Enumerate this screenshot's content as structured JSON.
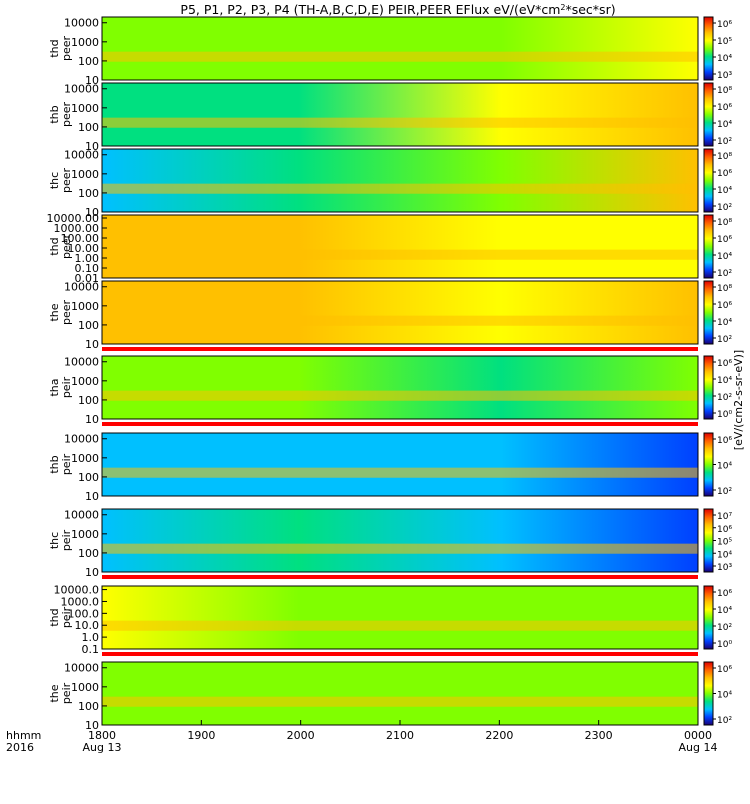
{
  "chart_data": {
    "type": "heatmap",
    "title": "P5, P1, P2, P3, P4 (TH-A,B,C,D,E) PEIR,PEER EFlux eV/(eV*cm2*sec*sr)",
    "title_parts": {
      "main": "P5, P1, P2, P3, P4 (TH-A,B,C,D,E) PEIR,PEER EFlux eV/(eV*cm",
      "sup": "2",
      "tail": "*sec*sr)"
    },
    "colorbar_label": "[eV/(cm2-s-sr-eV)]",
    "xaxis": {
      "row_label_1": "hhmm",
      "row_label_2": "2016",
      "ticks": [
        {
          "pos": 0,
          "label": "1800",
          "sub": "Aug 13"
        },
        {
          "pos": 1,
          "label": "1900",
          "sub": ""
        },
        {
          "pos": 2,
          "label": "2000",
          "sub": ""
        },
        {
          "pos": 3,
          "label": "2100",
          "sub": ""
        },
        {
          "pos": 4,
          "label": "2200",
          "sub": ""
        },
        {
          "pos": 5,
          "label": "2300",
          "sub": ""
        },
        {
          "pos": 6,
          "label": "0000",
          "sub": "Aug 14"
        }
      ]
    },
    "panels": [
      {
        "label1": "thd",
        "label2": "peer",
        "yticks": [
          "10000",
          "1000",
          "100",
          "10"
        ],
        "ylim": [
          10,
          20000
        ],
        "cbar_ticks": [
          "10⁶",
          "10⁵",
          "10⁴",
          "10³"
        ],
        "bar_after": false
      },
      {
        "label1": "thb",
        "label2": "peer",
        "yticks": [
          "10000",
          "1000",
          "100",
          "10"
        ],
        "ylim": [
          10,
          20000
        ],
        "cbar_ticks": [
          "10⁸",
          "10⁶",
          "10⁴",
          "10²"
        ],
        "bar_after": false
      },
      {
        "label1": "thc",
        "label2": "peer",
        "yticks": [
          "10000",
          "1000",
          "100",
          "10"
        ],
        "ylim": [
          10,
          20000
        ],
        "cbar_ticks": [
          "10⁸",
          "10⁶",
          "10⁴",
          "10²"
        ],
        "bar_after": false
      },
      {
        "label1": "thd",
        "label2": "peer",
        "yticks": [
          "10000.00",
          "1000.00",
          "100.00",
          "10.00",
          "1.00",
          "0.10",
          "0.01"
        ],
        "ylim": [
          0.01,
          20000
        ],
        "cbar_ticks": [
          "10⁸",
          "10⁶",
          "10⁴",
          "10²"
        ],
        "bar_after": false
      },
      {
        "label1": "the",
        "label2": "peer",
        "yticks": [
          "10000",
          "1000",
          "100",
          "10"
        ],
        "ylim": [
          10,
          20000
        ],
        "cbar_ticks": [
          "10⁸",
          "10⁶",
          "10⁴",
          "10²"
        ],
        "bar_after": true
      },
      {
        "label1": "tha",
        "label2": "peir",
        "yticks": [
          "10000",
          "1000",
          "100",
          "10"
        ],
        "ylim": [
          10,
          20000
        ],
        "cbar_ticks": [
          "10⁶",
          "10⁴",
          "10²",
          "10⁰"
        ],
        "bar_after": true
      },
      {
        "label1": "thb",
        "label2": "peir",
        "yticks": [
          "10000",
          "1000",
          "100",
          "10"
        ],
        "ylim": [
          10,
          20000
        ],
        "cbar_ticks": [
          "10⁶",
          "10⁴",
          "10²"
        ],
        "bar_after": false
      },
      {
        "label1": "thc",
        "label2": "peir",
        "yticks": [
          "10000",
          "1000",
          "100",
          "10"
        ],
        "ylim": [
          10,
          20000
        ],
        "cbar_ticks": [
          "10⁷",
          "10⁶",
          "10⁵",
          "10⁴",
          "10³"
        ],
        "bar_after": true
      },
      {
        "label1": "thd",
        "label2": "peir",
        "yticks": [
          "10000.0",
          "1000.0",
          "100.0",
          "10.0",
          "1.0",
          "0.1"
        ],
        "ylim": [
          0.1,
          20000
        ],
        "cbar_ticks": [
          "10⁶",
          "10⁴",
          "10²",
          "10⁰"
        ],
        "bar_after": true
      },
      {
        "label1": "the",
        "label2": "peir",
        "yticks": [
          "10000",
          "1000",
          "100",
          "10"
        ],
        "ylim": [
          10,
          20000
        ],
        "cbar_ticks": [
          "10⁶",
          "10⁴",
          "10²"
        ],
        "bar_after": false
      }
    ],
    "colors": {
      "background": "#ffffff",
      "axes": "#000000",
      "gap_bar": "#ff0000",
      "colormap": [
        "#1a0070",
        "#0040ff",
        "#00c0ff",
        "#00e080",
        "#80ff00",
        "#ffff00",
        "#ffc000",
        "#ff6000",
        "#e00000"
      ]
    }
  }
}
